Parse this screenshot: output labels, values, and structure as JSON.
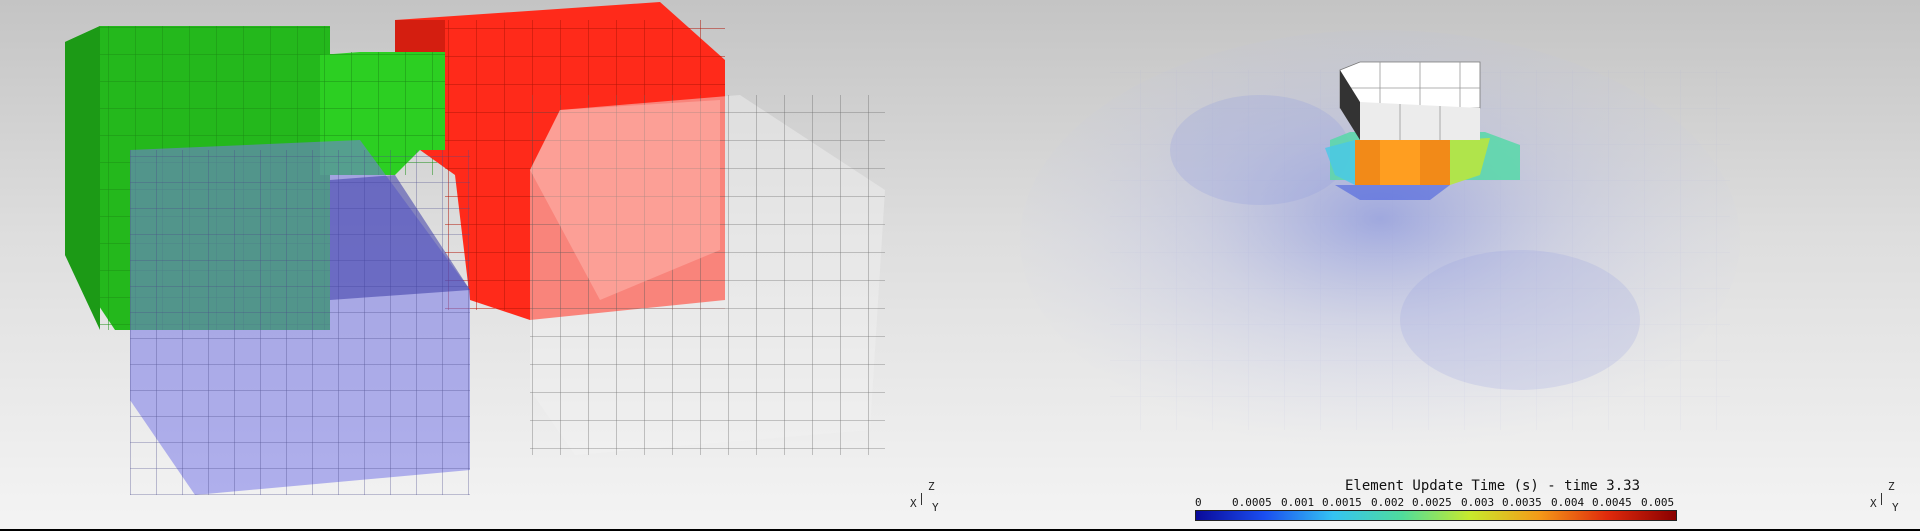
{
  "legend": {
    "title": "Element Update Time (s) - time 3.33",
    "ticks": [
      "0",
      "0.0005",
      "0.001",
      "0.0015",
      "0.002",
      "0.0025",
      "0.003",
      "0.0035",
      "0.004",
      "0.0045",
      "0.005"
    ],
    "colors": [
      "#0a0a9a",
      "#1a4ef0",
      "#34c3f2",
      "#4fdc9c",
      "#c8ea2c",
      "#f49a18",
      "#e02a0c",
      "#8a0000"
    ]
  },
  "axes_left": {
    "z": "Z",
    "x": "X",
    "y": "Y"
  },
  "axes_right": {
    "z": "Z",
    "x": "X",
    "y": "Y"
  },
  "scene_colors": {
    "green": "#2ccf22",
    "red": "#ff2a1a",
    "blue": "#7070e0",
    "white": "#eeeeee"
  }
}
